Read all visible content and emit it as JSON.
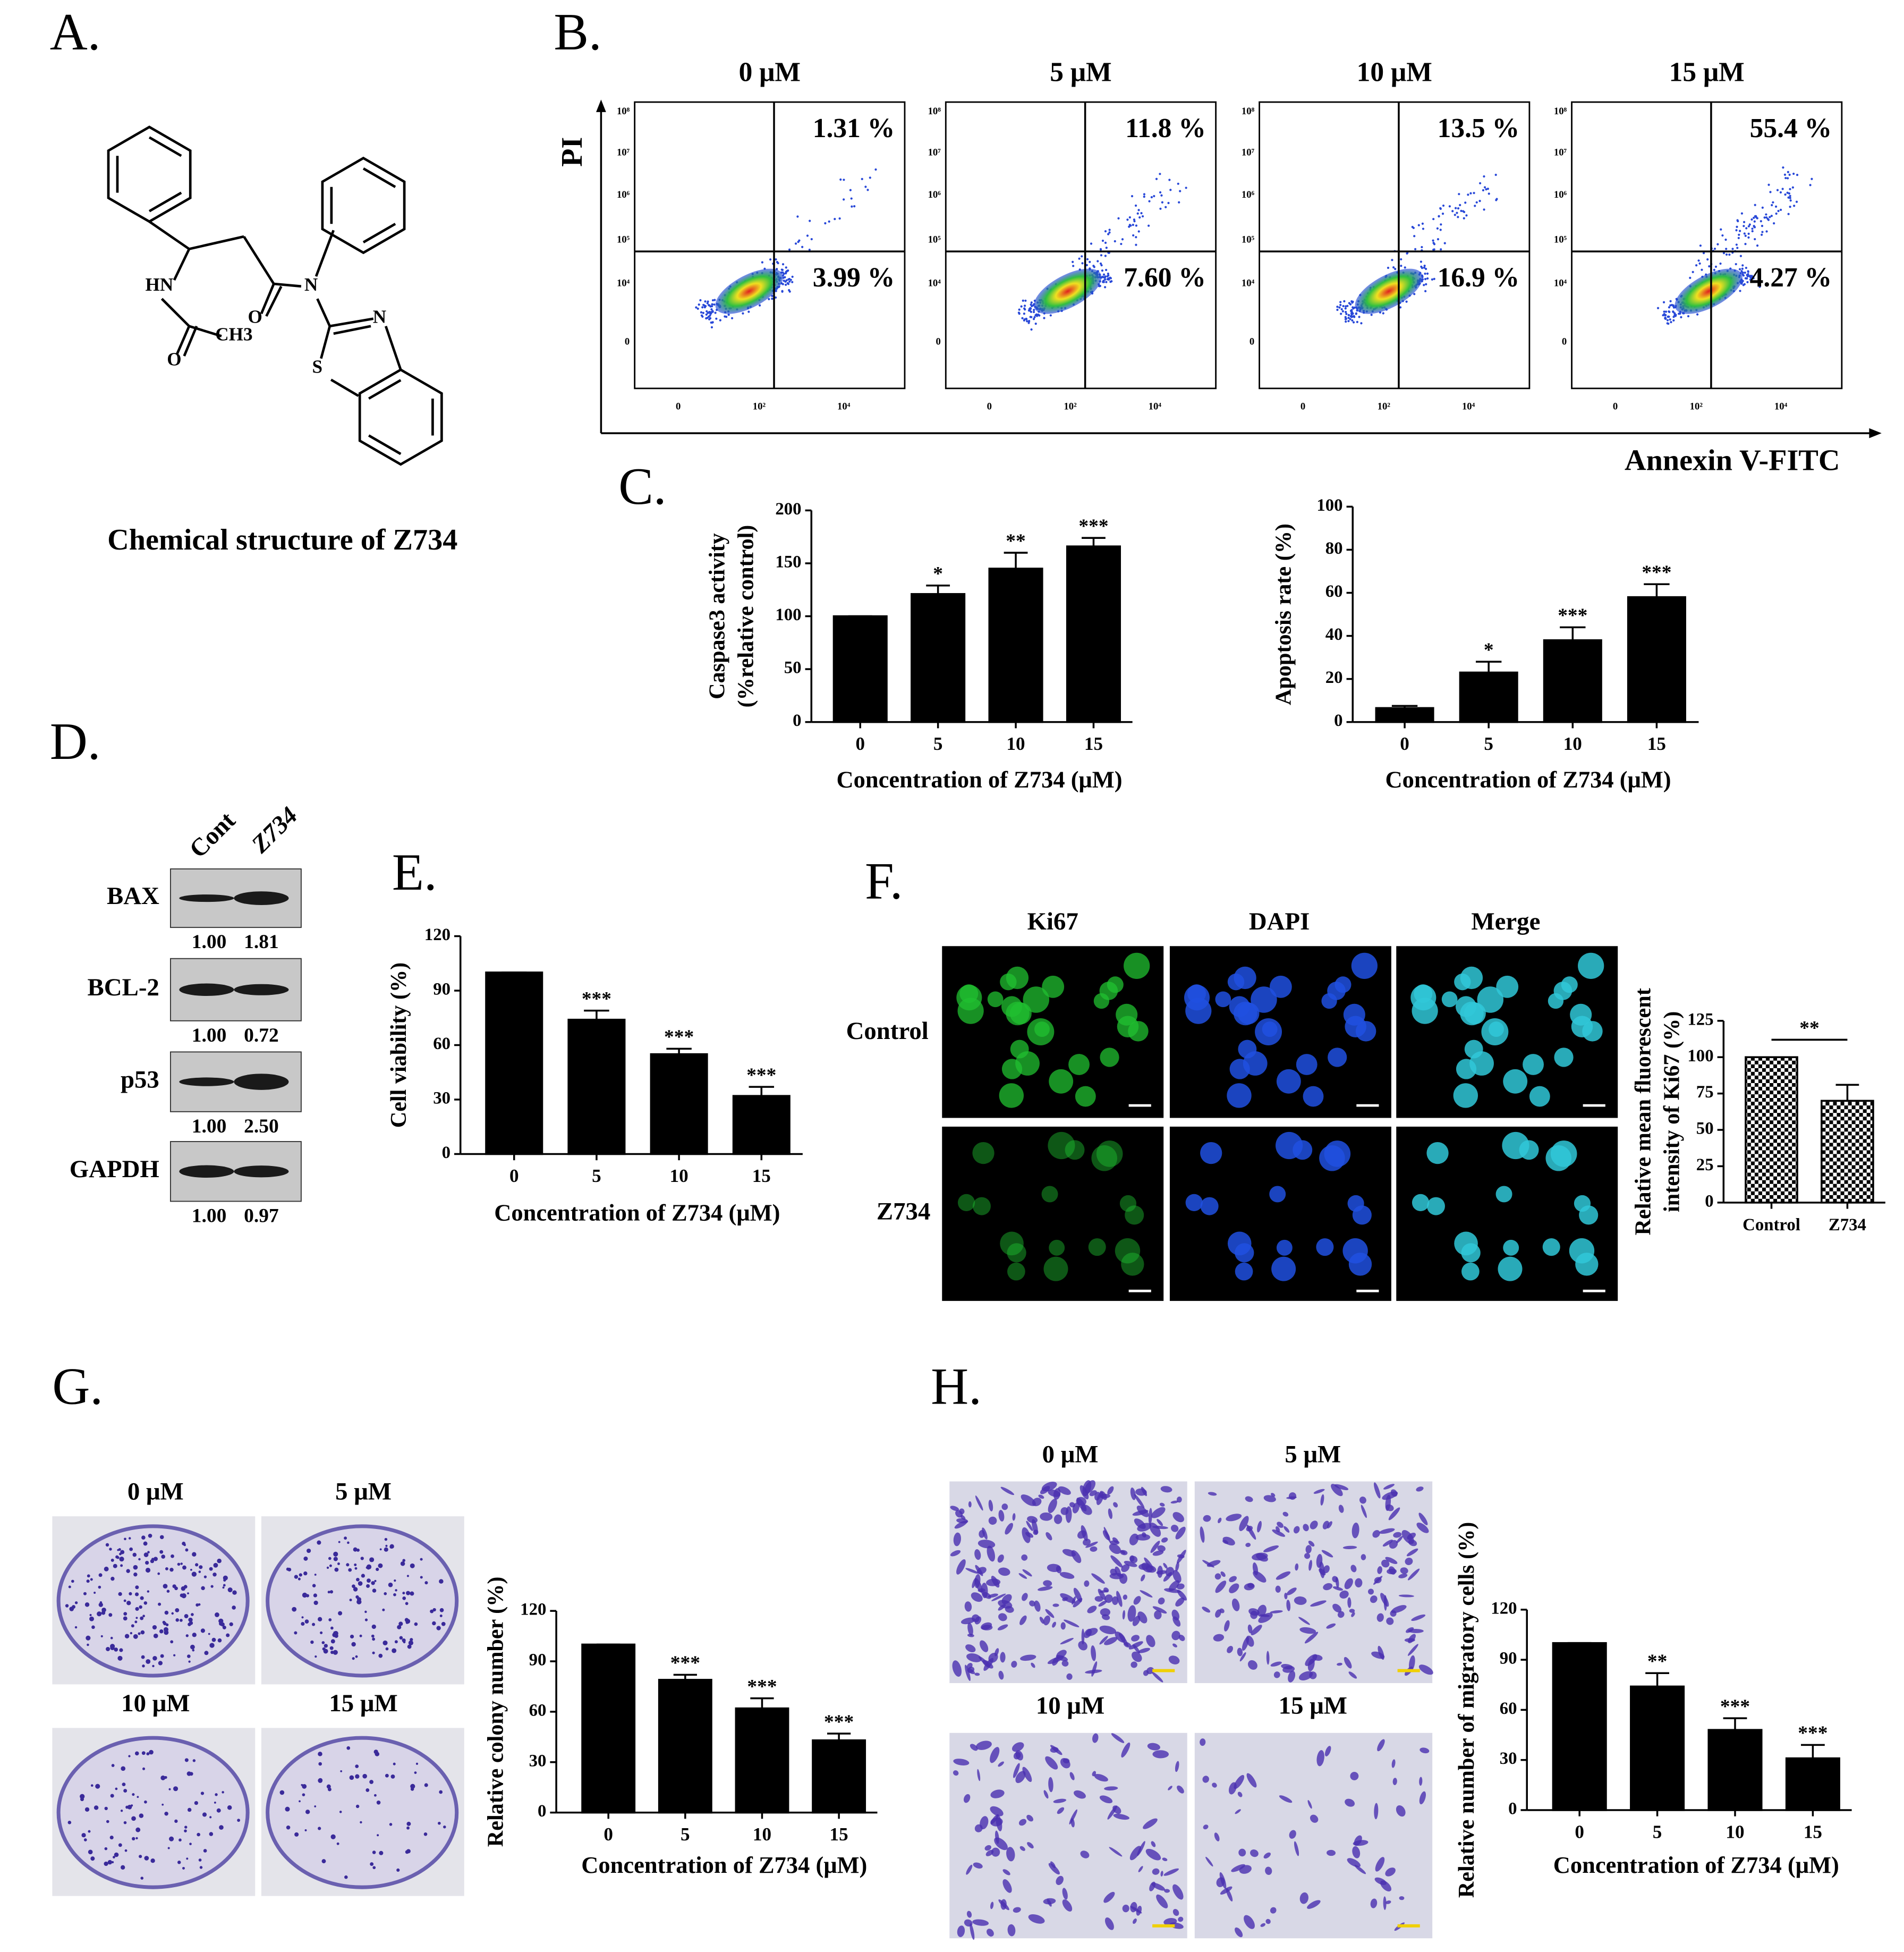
{
  "panels": [
    "A.",
    "B.",
    "C.",
    "D.",
    "E.",
    "F.",
    "G.",
    "H."
  ],
  "structure": {
    "atoms": [
      "HN",
      "O",
      "CH3",
      "O",
      "N",
      "N",
      "S"
    ],
    "caption": "Chemical structure of Z734"
  },
  "flow": {
    "ylabel": "PI",
    "xlabel": "Annexin V-FITC",
    "yticks": [
      "10⁸",
      "10⁷",
      "10⁶",
      "10⁵",
      "10⁴",
      "0"
    ],
    "xticks": [
      "0",
      "10²",
      "10⁴"
    ],
    "panels": [
      {
        "label": "0 μM",
        "upper_right": "1.31 %",
        "lower_right": "3.99 %"
      },
      {
        "label": "5 μM",
        "upper_right": "11.8 %",
        "lower_right": "7.60 %"
      },
      {
        "label": "10 μM",
        "upper_right": "13.5 %",
        "lower_right": "16.9 %"
      },
      {
        "label": "15 μM",
        "upper_right": "55.4 %",
        "lower_right": "4.27 %"
      }
    ]
  },
  "western": {
    "columns": [
      "Cont",
      "Z734"
    ],
    "rows": [
      {
        "label": "BAX",
        "values": [
          "1.00",
          "1.81"
        ]
      },
      {
        "label": "BCL-2",
        "values": [
          "1.00",
          "0.72"
        ]
      },
      {
        "label": "p53",
        "values": [
          "1.00",
          "2.50"
        ]
      },
      {
        "label": "GAPDH",
        "values": [
          "1.00",
          "0.97"
        ]
      }
    ]
  },
  "fluorescence": {
    "channels": [
      "Ki67",
      "DAPI",
      "Merge"
    ],
    "rows": [
      "Control",
      "Z734"
    ]
  },
  "colony": {
    "labels": [
      "0 μM",
      "5 μM",
      "10 μM",
      "15 μM"
    ]
  },
  "migration": {
    "labels": [
      "0 μM",
      "5 μM",
      "10 μM",
      "15 μM"
    ]
  },
  "chart_data": [
    {
      "type": "bar",
      "ylabel": [
        "Caspase3 activity",
        "(%relative control)"
      ],
      "xlabel": "Concentration of Z734 (μM)",
      "categories": [
        "0",
        "5",
        "10",
        "15"
      ],
      "values": [
        100,
        121,
        145,
        166
      ],
      "errors": [
        0,
        8,
        15,
        8
      ],
      "annotations": [
        null,
        "*",
        "**",
        "***"
      ],
      "ylim": [
        0,
        200
      ],
      "yticks": [
        0,
        50,
        100,
        150,
        200
      ],
      "color": "#000000"
    },
    {
      "type": "bar",
      "ylabel": "Apoptosis rate (%)",
      "xlabel": "Concentration of Z734 (μM)",
      "categories": [
        "0",
        "5",
        "10",
        "15"
      ],
      "values": [
        6.5,
        23,
        38,
        58
      ],
      "errors": [
        1,
        5,
        6,
        6
      ],
      "annotations": [
        null,
        "*",
        "***",
        "***"
      ],
      "ylim": [
        0,
        100
      ],
      "yticks": [
        0,
        20,
        40,
        60,
        80,
        100
      ],
      "color": "#000000"
    },
    {
      "type": "bar",
      "ylabel": "Cell viability (%)",
      "xlabel": "Concentration of Z734 (μM)",
      "categories": [
        "0",
        "5",
        "10",
        "15"
      ],
      "values": [
        100,
        74,
        55,
        32
      ],
      "errors": [
        0,
        5,
        3,
        5
      ],
      "annotations": [
        null,
        "***",
        "***",
        "***"
      ],
      "ylim": [
        0,
        120
      ],
      "yticks": [
        0,
        30,
        60,
        90,
        120
      ],
      "color": "#000000"
    },
    {
      "type": "bar",
      "ylabel": [
        "Relative mean fluorescent",
        "intensity of Ki67 (%)"
      ],
      "categories": [
        "Control",
        "Z734"
      ],
      "values": [
        100,
        70
      ],
      "errors": [
        0,
        11
      ],
      "annotations": [
        null,
        "**"
      ],
      "ylim": [
        0,
        125
      ],
      "yticks": [
        0,
        25,
        50,
        75,
        100,
        125
      ],
      "color": "#000000",
      "pattern": "checker",
      "bracket": true
    },
    {
      "type": "bar",
      "ylabel": "Relative colony number (%)",
      "xlabel": "Concentration of Z734 (μM)",
      "categories": [
        "0",
        "5",
        "10",
        "15"
      ],
      "values": [
        100,
        79,
        62,
        43
      ],
      "errors": [
        0,
        3,
        6,
        4
      ],
      "annotations": [
        null,
        "***",
        "***",
        "***"
      ],
      "ylim": [
        0,
        120
      ],
      "yticks": [
        0,
        30,
        60,
        90,
        120
      ],
      "color": "#000000"
    },
    {
      "type": "bar",
      "ylabel": "Relative number of migratory cells (%)",
      "xlabel": "Concentration of Z734 (μM)",
      "categories": [
        "0",
        "5",
        "10",
        "15"
      ],
      "values": [
        100,
        74,
        48,
        31
      ],
      "errors": [
        0,
        8,
        7,
        8
      ],
      "annotations": [
        null,
        "**",
        "***",
        "***"
      ],
      "ylim": [
        0,
        120
      ],
      "yticks": [
        0,
        30,
        60,
        90,
        120
      ],
      "color": "#000000"
    }
  ]
}
